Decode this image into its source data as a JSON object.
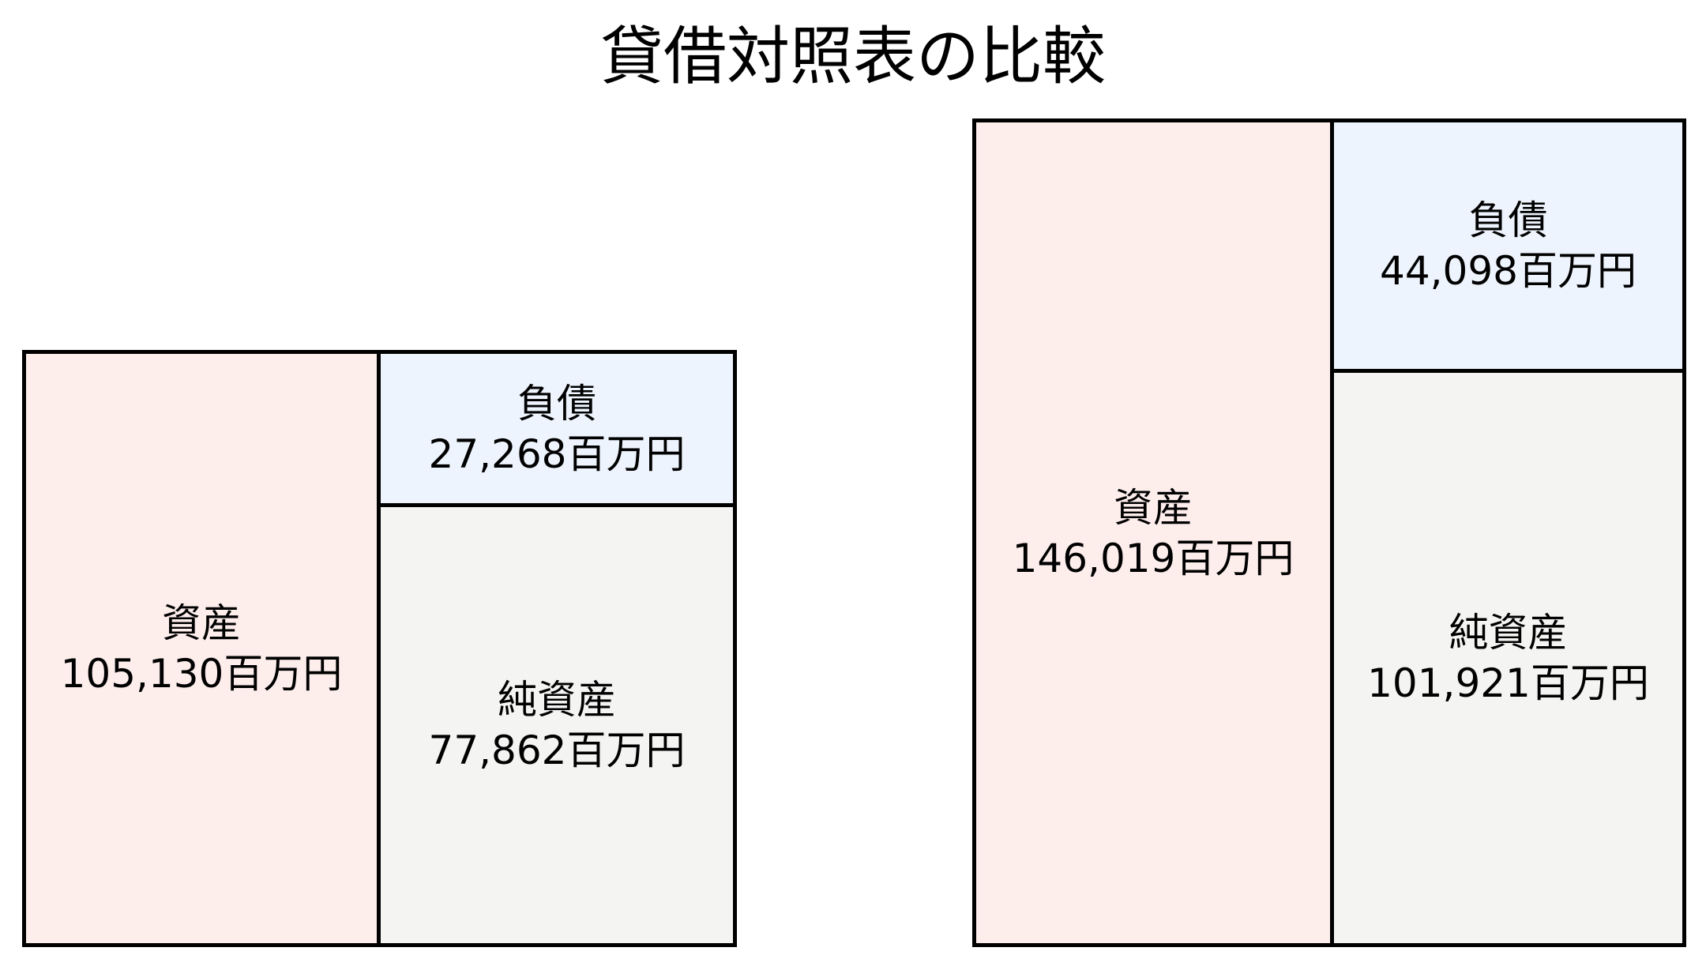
{
  "title": "貸借対照表の比較",
  "left_sheet": {
    "assets": {
      "label": "資産",
      "value": "105,130百万円"
    },
    "liabilities": {
      "label": "負債",
      "value": "27,268百万円"
    },
    "net_assets": {
      "label": "純資産",
      "value": "77,862百万円"
    }
  },
  "right_sheet": {
    "assets": {
      "label": "資産",
      "value": "146,019百万円"
    },
    "liabilities": {
      "label": "負債",
      "value": "44,098百万円"
    },
    "net_assets": {
      "label": "純資産",
      "value": "101,921百万円"
    }
  },
  "colors": {
    "assets_fill": "#fdeeec",
    "liabilities_fill": "#eef4fd",
    "net_assets_fill": "#f4f4f3",
    "border": "#000000",
    "background": "#ffffff",
    "text": "#000000"
  },
  "chart_data": {
    "type": "bar",
    "subtype": "balance-sheet-box-comparison",
    "title": "貸借対照表の比較",
    "unit": "百万円",
    "labels": {
      "assets": "資産",
      "liabilities": "負債",
      "net_assets": "純資産"
    },
    "sheets": [
      {
        "assets": 105130,
        "liabilities": 27268,
        "net_assets": 77862
      },
      {
        "assets": 146019,
        "liabilities": 44098,
        "net_assets": 101921
      }
    ],
    "layout": "two box diagrams side by side; each has assets column on the left and liabilities stacked above net assets on the right; box heights proportional to values; no axes or gridlines; title centered at top"
  }
}
